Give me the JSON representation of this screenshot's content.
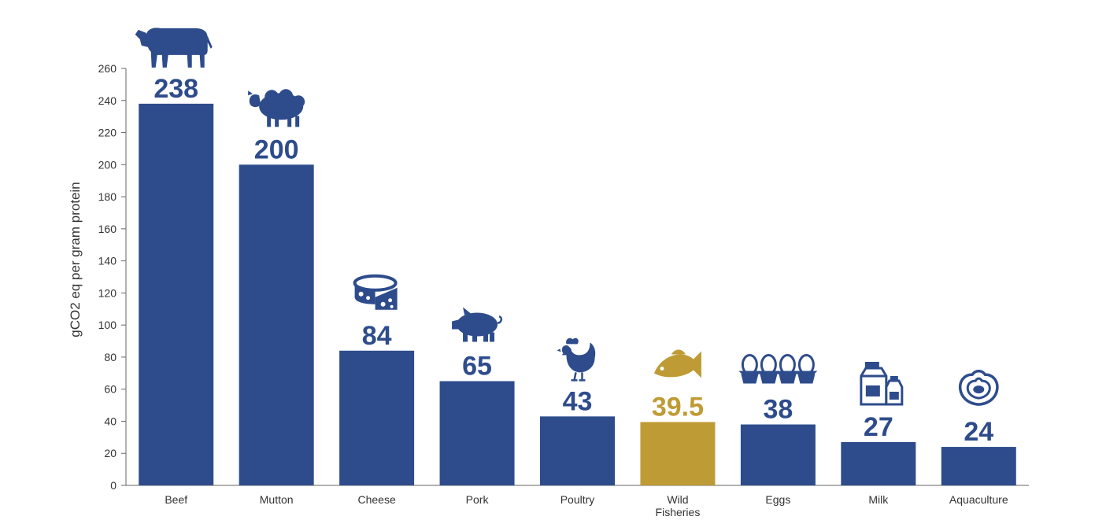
{
  "chart_data": {
    "type": "bar",
    "categories": [
      "Beef",
      "Mutton",
      "Cheese",
      "Pork",
      "Poultry",
      "Wild Fisheries",
      "Eggs",
      "Milk",
      "Aquaculture"
    ],
    "category_label_lines": [
      [
        "Beef"
      ],
      [
        "Mutton"
      ],
      [
        "Cheese"
      ],
      [
        "Pork"
      ],
      [
        "Poultry"
      ],
      [
        "Wild",
        "Fisheries"
      ],
      [
        "Eggs"
      ],
      [
        "Milk"
      ],
      [
        "Aquaculture"
      ]
    ],
    "values": [
      238,
      200,
      84,
      65,
      43,
      39.5,
      38,
      27,
      24
    ],
    "value_labels": [
      "238",
      "200",
      "84",
      "65",
      "43",
      "39.5",
      "38",
      "27",
      "24"
    ],
    "icons": [
      "cow-icon",
      "sheep-icon",
      "cheese-icon",
      "pig-icon",
      "chicken-icon",
      "fish-icon",
      "eggs-icon",
      "milk-icon",
      "oyster-icon"
    ],
    "bar_colors": [
      "#2e4c8c",
      "#2e4c8c",
      "#2e4c8c",
      "#2e4c8c",
      "#2e4c8c",
      "#bf9b35",
      "#2e4c8c",
      "#2e4c8c",
      "#2e4c8c"
    ],
    "label_colors": [
      "#2e4c8c",
      "#2e4c8c",
      "#2e4c8c",
      "#2e4c8c",
      "#2e4c8c",
      "#bf9b35",
      "#2e4c8c",
      "#2e4c8c",
      "#2e4c8c"
    ],
    "ylabel": "gCO2 eq per gram protein",
    "xlabel": "",
    "ylim": [
      0,
      260
    ],
    "yticks": [
      0,
      20,
      40,
      60,
      80,
      100,
      120,
      140,
      160,
      180,
      200,
      220,
      240,
      260
    ],
    "grid": false
  }
}
